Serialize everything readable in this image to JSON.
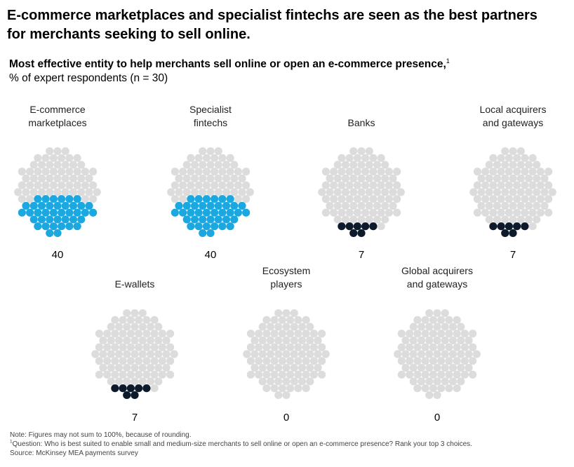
{
  "title": "E-commerce marketplaces and specialist fintechs are seen as the best partners for merchants seeking to sell online.",
  "subtitle": {
    "lead": "Most effective entity to help merchants sell online or open an e-commerce presence,",
    "lead_sup": "1",
    "unit": "% of expert respondents (n = 30)"
  },
  "colors": {
    "empty": "#dcdcdc",
    "highlight_blue": "#1ba8e0",
    "highlight_dark": "#0c1a2b"
  },
  "chart_data": {
    "type": "dot-circle",
    "title": "Most effective entity to help merchants sell online or open an e-commerce presence",
    "unit": "% of expert respondents (n = 30)",
    "total_dots_per_circle": 100,
    "items": [
      {
        "label_lines": [
          "E-commerce",
          "marketplaces"
        ],
        "value": 40,
        "value_label": "40",
        "color": "#1ba8e0"
      },
      {
        "label_lines": [
          "Specialist",
          "fintechs"
        ],
        "value": 40,
        "value_label": "40",
        "color": "#1ba8e0"
      },
      {
        "label_lines": [
          "Banks"
        ],
        "value": 7,
        "value_label": "7",
        "color": "#0c1a2b"
      },
      {
        "label_lines": [
          "Local acquirers",
          "and gateways"
        ],
        "value": 7,
        "value_label": "7",
        "color": "#0c1a2b"
      },
      {
        "label_lines": [
          "E-wallets"
        ],
        "value": 7,
        "value_label": "7",
        "color": "#0c1a2b"
      },
      {
        "label_lines": [
          "Ecosystem",
          "players"
        ],
        "value": 0,
        "value_label": "0",
        "color": "#0c1a2b"
      },
      {
        "label_lines": [
          "Global acquirers",
          "and gateways"
        ],
        "value": 0,
        "value_label": "0",
        "color": "#0c1a2b"
      }
    ]
  },
  "footnotes": {
    "note": "Note: Figures may not sum to 100%, because of rounding.",
    "question_sup": "1",
    "question": "Question: Who is best suited to enable small and medium-size merchants to sell online or open an e-commerce presence? Rank your top 3 choices.",
    "source": "Source: McKinsey MEA payments survey"
  }
}
